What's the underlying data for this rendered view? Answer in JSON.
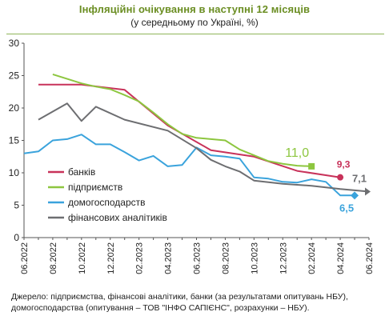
{
  "title": "Інфляційні очікування в наступні 12 місяців",
  "subtitle": "(у середньому по Україні,  %)",
  "source": "Джерело: підприємства, фінансові аналітики, банки (за результатами опитувань НБУ), домогосподарства (опитування – ТОВ \"ІНФО САПІЄНС\",  розрахунки – НБУ).",
  "chart_data": {
    "type": "line",
    "title": "Інфляційні очікування в наступні 12 місяців",
    "subtitle": "(у середньому по Україні,  %)",
    "xlabel": "",
    "ylabel": "",
    "ylim": [
      0,
      30
    ],
    "yticks": [
      0,
      5,
      10,
      15,
      20,
      25,
      30
    ],
    "x": [
      "06.2022",
      "07.2022",
      "08.2022",
      "09.2022",
      "10.2022",
      "11.2022",
      "12.2022",
      "01.2023",
      "02.2023",
      "03.2023",
      "04.2023",
      "05.2023",
      "06.2023",
      "07.2023",
      "08.2023",
      "09.2023",
      "10.2023",
      "11.2023",
      "12.2023",
      "01.2024",
      "02.2024",
      "03.2024",
      "04.2024",
      "05.2024",
      "06.2024"
    ],
    "xtick_labels": [
      "06.2022",
      "08.2022",
      "10.2022",
      "12.2022",
      "02.2023",
      "04.2023",
      "06.2023",
      "08.2023",
      "10.2023",
      "12.2023",
      "02.2024",
      "04.2024",
      "06.2024"
    ],
    "grid": false,
    "legend_position": "bottom-left",
    "series": [
      {
        "name": "банків",
        "color": "#c8325a",
        "x": [
          "07.2022",
          "10.2022",
          "01.2023",
          "04.2023",
          "07.2023",
          "10.2023",
          "01.2024",
          "04.2024"
        ],
        "values": [
          23.6,
          23.6,
          22.8,
          17.3,
          13.5,
          12.5,
          10.3,
          9.3
        ],
        "end_label": "9,3",
        "marker": "circle"
      },
      {
        "name": "підприємств",
        "color": "#8dc63f",
        "x": [
          "08.2022",
          "09.2022",
          "10.2022",
          "11.2022",
          "12.2022",
          "01.2023",
          "02.2023",
          "03.2023",
          "04.2023",
          "05.2023",
          "06.2023",
          "07.2023",
          "08.2023",
          "09.2023",
          "10.2023",
          "11.2023",
          "12.2023",
          "01.2024",
          "02.2024"
        ],
        "values": [
          25.2,
          24.5,
          23.8,
          23.3,
          22.9,
          22.0,
          21.0,
          19.3,
          17.5,
          16.0,
          15.4,
          15.2,
          15.0,
          13.6,
          12.7,
          11.8,
          11.4,
          11.1,
          11.0
        ],
        "end_label": "11,0",
        "marker": "square"
      },
      {
        "name": "домогосподарств",
        "color": "#3aa3dc",
        "x": [
          "06.2022",
          "07.2022",
          "08.2022",
          "09.2022",
          "10.2022",
          "11.2022",
          "12.2022",
          "01.2023",
          "02.2023",
          "03.2023",
          "04.2023",
          "05.2023",
          "06.2023",
          "07.2023",
          "08.2023",
          "09.2023",
          "10.2023",
          "11.2023",
          "12.2023",
          "01.2024",
          "02.2024",
          "03.2024",
          "04.2024",
          "05.2024"
        ],
        "values": [
          13.0,
          13.3,
          15.0,
          15.2,
          15.9,
          14.4,
          14.4,
          13.2,
          11.9,
          12.6,
          11.0,
          11.2,
          13.9,
          12.7,
          12.5,
          12.2,
          9.3,
          9.1,
          8.6,
          8.5,
          9.0,
          8.6,
          6.5,
          6.5
        ],
        "end_label": "6,5",
        "marker": "diamond"
      },
      {
        "name": "фінансових аналітиків",
        "color": "#6d6e71",
        "x": [
          "07.2022",
          "09.2022",
          "10.2022",
          "11.2022",
          "01.2023",
          "04.2023",
          "06.2023",
          "07.2023",
          "08.2023",
          "09.2023",
          "10.2023",
          "12.2023",
          "02.2024",
          "04.2024",
          "06.2024"
        ],
        "values": [
          18.2,
          20.7,
          18.0,
          20.2,
          18.2,
          16.5,
          13.8,
          12.0,
          11.0,
          10.2,
          8.8,
          8.3,
          8.0,
          7.5,
          7.1
        ],
        "end_label": "7,1",
        "marker": "triangle"
      }
    ]
  }
}
